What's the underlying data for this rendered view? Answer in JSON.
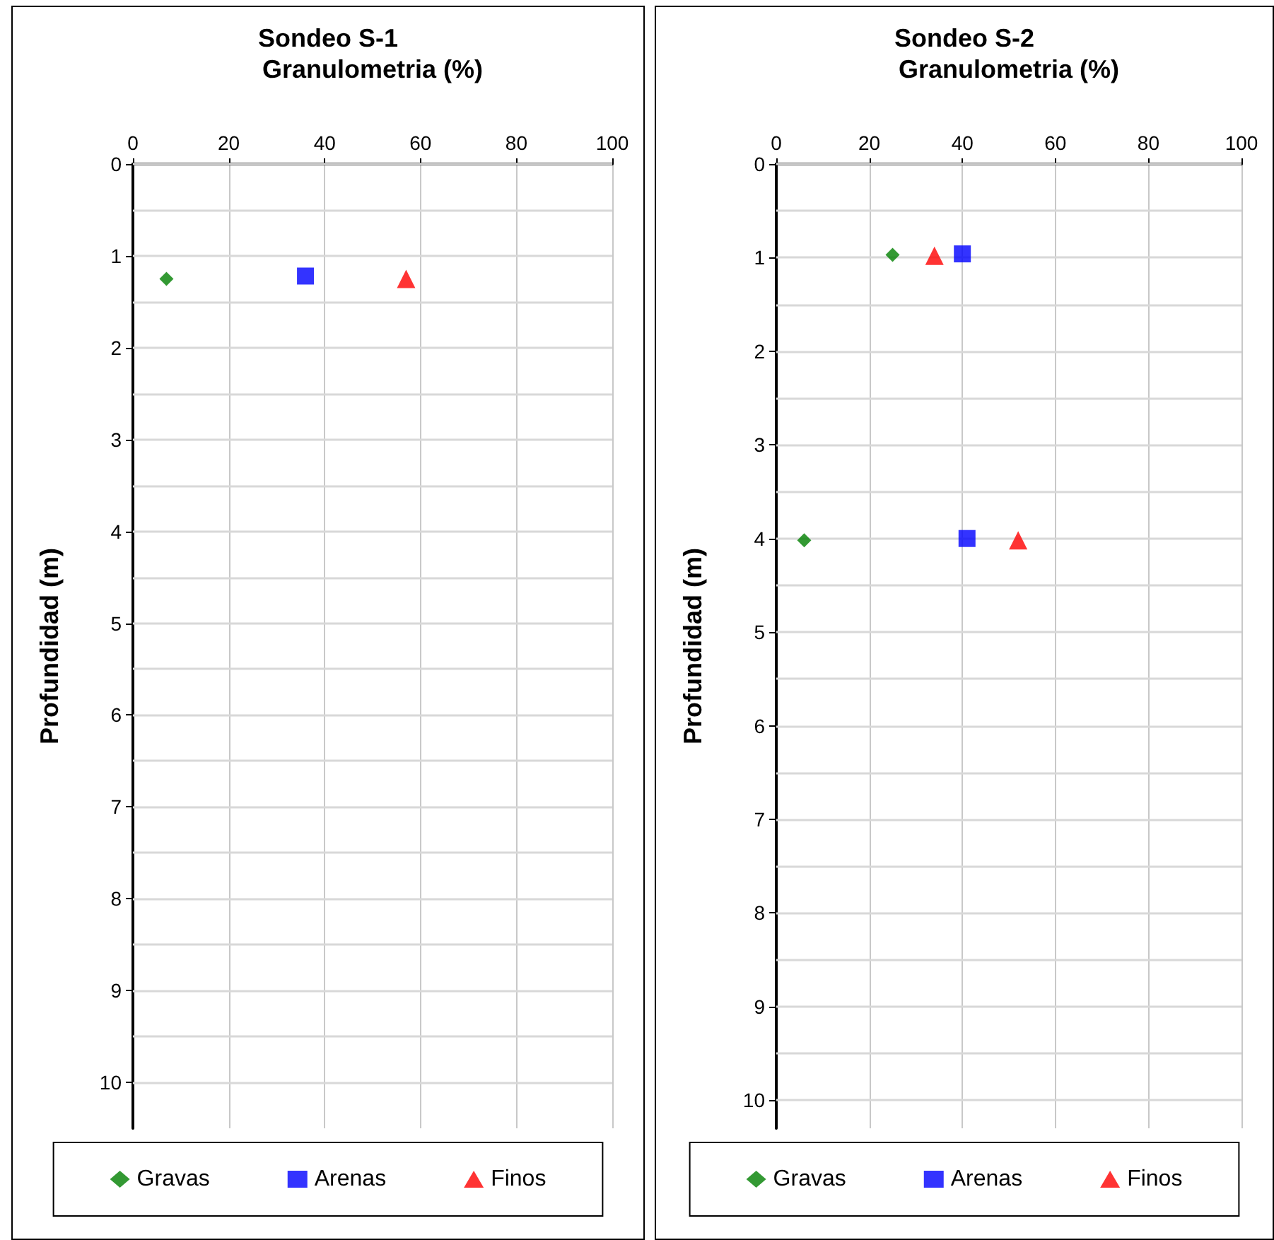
{
  "chart_data": [
    {
      "type": "scatter",
      "title": "Sondeo S-1",
      "xlabel": "Granulometria (%)",
      "ylabel": "Profundidad (m)",
      "xlim": [
        0,
        100
      ],
      "xticks": [
        0,
        20,
        40,
        60,
        80,
        100
      ],
      "ylim": [
        10.5,
        0
      ],
      "yticks": [
        0,
        {
          "value": 0.5,
          "label": null
        },
        1,
        {
          "value": 1.5,
          "label": null
        },
        2,
        {
          "value": 2.5,
          "label": null
        },
        3,
        {
          "value": 3.5,
          "label": null
        },
        4,
        {
          "value": 4.5,
          "label": null
        },
        5,
        {
          "value": 5.5,
          "label": null
        },
        6,
        {
          "value": 6.5,
          "label": null
        },
        7,
        {
          "value": 7.5,
          "label": null
        },
        8,
        {
          "value": 8.5,
          "label": null
        },
        9,
        {
          "value": 9.5,
          "label": null
        },
        10
      ],
      "grid": true,
      "legend": "bottom",
      "series": [
        {
          "name": "Gravas",
          "color": "#008000",
          "marker": "diamond",
          "x": [
            7
          ],
          "values": [
            1.25
          ]
        },
        {
          "name": "Arenas",
          "color": "#0000ff",
          "marker": "square",
          "x": [
            36
          ],
          "values": [
            1.22
          ]
        },
        {
          "name": "Finos",
          "color": "#ff0000",
          "marker": "triangle",
          "x": [
            57
          ],
          "values": [
            1.25
          ]
        }
      ]
    },
    {
      "type": "scatter",
      "title": "Sondeo S-2",
      "xlabel": "Granulometria (%)",
      "ylabel": "Profundidad (m)",
      "xlim": [
        0,
        100
      ],
      "xticks": [
        0,
        20,
        40,
        60,
        80,
        100
      ],
      "ylim": [
        10.3,
        0
      ],
      "yticks": [
        0,
        {
          "value": 0.5,
          "label": null
        },
        1,
        {
          "value": 1.5,
          "label": null
        },
        2,
        {
          "value": 2.5,
          "label": null
        },
        3,
        {
          "value": 3.5,
          "label": null
        },
        4,
        {
          "value": 4.5,
          "label": null
        },
        5,
        {
          "value": 5.5,
          "label": null
        },
        6,
        {
          "value": 6.5,
          "label": null
        },
        7,
        {
          "value": 7.5,
          "label": null
        },
        8,
        {
          "value": 8.5,
          "label": null
        },
        9,
        {
          "value": 9.5,
          "label": null
        },
        10
      ],
      "grid": true,
      "legend": "bottom",
      "series": [
        {
          "name": "Gravas",
          "color": "#008000",
          "marker": "diamond",
          "x": [
            25,
            6
          ],
          "values": [
            0.97,
            4.02
          ]
        },
        {
          "name": "Arenas",
          "color": "#0000ff",
          "marker": "square",
          "x": [
            40,
            41
          ],
          "values": [
            0.96,
            4.0
          ]
        },
        {
          "name": "Finos",
          "color": "#ff0000",
          "marker": "triangle",
          "x": [
            34,
            52
          ],
          "values": [
            0.98,
            4.02
          ]
        }
      ]
    }
  ]
}
